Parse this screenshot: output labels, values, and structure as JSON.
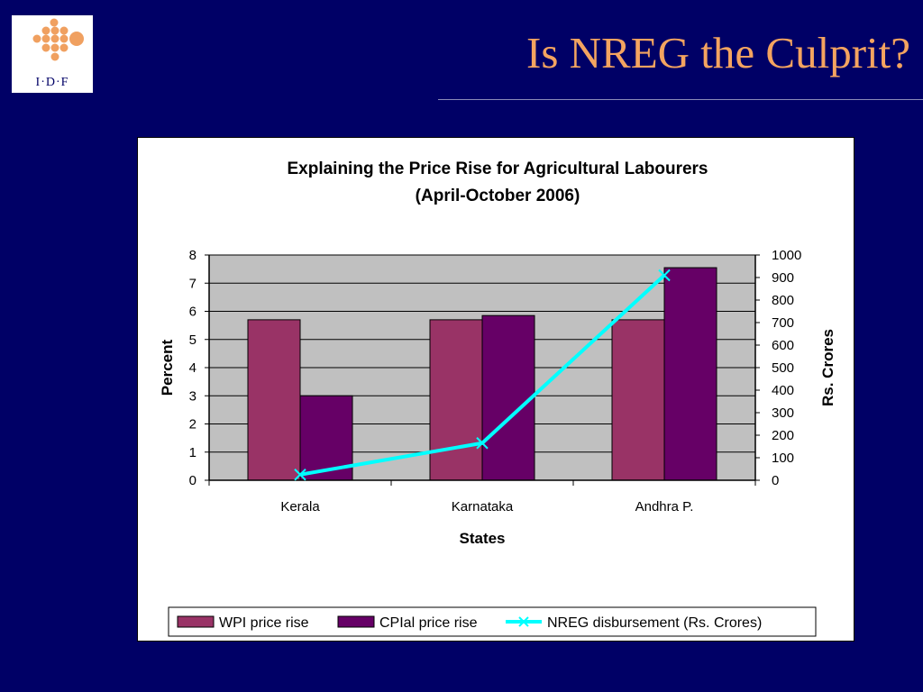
{
  "slide": {
    "title": "Is NREG the Culprit?",
    "logo_text": "I·D·F",
    "background": "#000066",
    "title_color": "#F4A460"
  },
  "chart_data": {
    "type": "bar",
    "title": "Explaining the Price Rise for Agricultural Labourers",
    "subtitle": "(April-October 2006)",
    "categories": [
      "Kerala",
      "Karnataka",
      "Andhra P."
    ],
    "xlabel": "States",
    "ylabel": "Percent",
    "y2label": "Rs. Crores",
    "ylim": [
      0,
      8
    ],
    "y2lim": [
      0,
      1000
    ],
    "yticks": [
      "0",
      "1",
      "2",
      "3",
      "4",
      "5",
      "6",
      "7",
      "8"
    ],
    "y2ticks": [
      "0",
      "100",
      "200",
      "300",
      "400",
      "500",
      "600",
      "700",
      "800",
      "900",
      "1000"
    ],
    "grid": true,
    "plot_background": "#C0C0C0",
    "legend_position": "bottom",
    "series": [
      {
        "name": "WPI price rise",
        "type": "bar",
        "axis": "left",
        "color": "#993366",
        "values": [
          5.7,
          5.7,
          5.7
        ]
      },
      {
        "name": "CPIal price rise",
        "type": "bar",
        "axis": "left",
        "color": "#660066",
        "values": [
          3.0,
          5.85,
          7.55
        ]
      },
      {
        "name": "NREG disbursement (Rs. Crores)",
        "type": "line",
        "axis": "right",
        "color": "#00FFFF",
        "marker": "x",
        "values": [
          25,
          165,
          910
        ]
      }
    ]
  }
}
